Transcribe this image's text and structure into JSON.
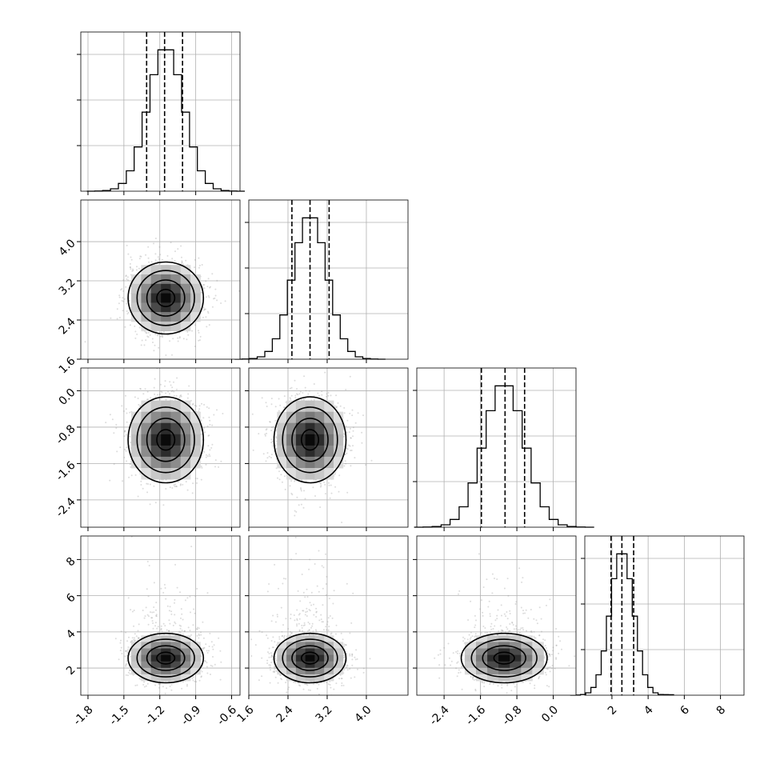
{
  "chart_data": {
    "type": "corner",
    "grid": true,
    "parameters": [
      {
        "mean": -1.15,
        "sd": 0.15,
        "q16": -1.31,
        "q50": -1.16,
        "q84": -1.01
      },
      {
        "mean": 2.85,
        "sd": 0.35,
        "q16": 2.48,
        "q50": 2.85,
        "q84": 3.24
      },
      {
        "mean": -1.08,
        "sd": 0.45,
        "q16": -1.58,
        "q50": -1.06,
        "q84": -0.63
      },
      {
        "mean": 2.55,
        "sd": 0.65,
        "q16": 1.95,
        "q50": 2.55,
        "q84": 3.2
      }
    ],
    "ranges": [
      [
        -1.86,
        -0.53
      ],
      [
        1.6,
        4.85
      ],
      [
        -3.0,
        0.5
      ],
      [
        0.5,
        9.3
      ]
    ],
    "ticks": [
      [
        "-1.8",
        "-1.5",
        "-1.2",
        "-0.9",
        "-0.6"
      ],
      [
        "1.6",
        "2.4",
        "3.2",
        "4.0"
      ],
      [
        "-2.4",
        "-1.6",
        "-0.8",
        "0.0"
      ],
      [
        "2",
        "4",
        "6",
        "8"
      ]
    ],
    "tick_values": [
      [
        -1.8,
        -1.5,
        -1.2,
        -0.9,
        -0.6
      ],
      [
        1.6,
        2.4,
        3.2,
        4.0
      ],
      [
        -2.4,
        -1.6,
        -0.8,
        0.0
      ],
      [
        2,
        4,
        6,
        8
      ]
    ],
    "bins": 20
  }
}
